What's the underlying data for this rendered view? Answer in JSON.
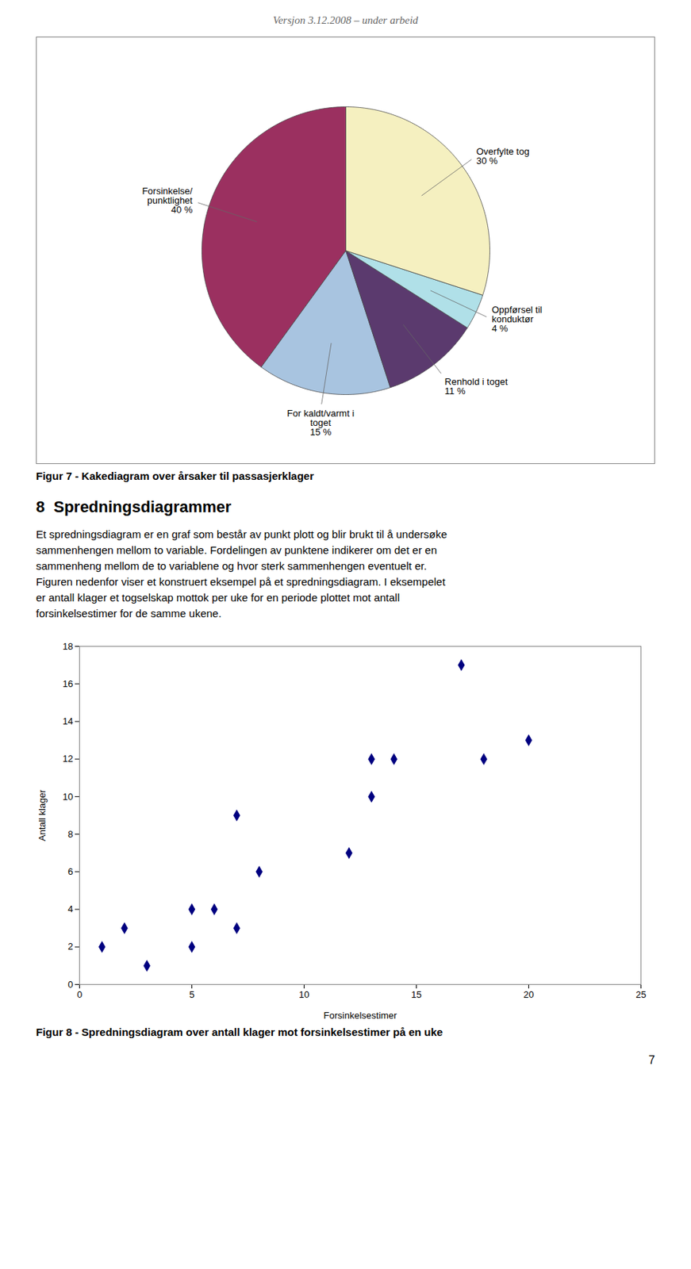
{
  "header": "Versjon 3.12.2008 – under arbeid",
  "section_title": "8  Spredningsdiagrammer",
  "body_text": [
    "Et spredningsdiagram er en graf som består av punkt plott og blir brukt til å undersøke",
    "sammenhengen mellom to variable. Fordelingen av punktene indikerer om det er en",
    "sammenheng mellom de to variablene og hvor sterk sammenhengen eventuelt er.",
    "Figuren nedenfor viser et konstruert eksempel på et spredningsdiagram. I eksempelet",
    "er antall klager et togselskap mottok per uke for en periode plottet mot antall",
    "forsinkelsestimer for de samme ukene."
  ],
  "page_number": "7",
  "chart_data": [
    {
      "type": "pie",
      "title": "Figur 7 - Kakediagram over årsaker til passasjerklager",
      "categories": [
        "Forsinkelse/\npunktlighet",
        "For kaldt/varmt i\ntoget",
        "Renhold i toget",
        "Oppførsel til\nkonduktør",
        "Overfylte tog"
      ],
      "values": [
        40,
        15,
        11,
        4,
        30
      ],
      "value_labels": [
        "40 %",
        "15 %",
        "11 %",
        "4 %",
        "30 %"
      ],
      "data_labels": true,
      "colors": [
        "#9B3060",
        "#A8C4E0",
        "#5B3A6E",
        "#B0E0E8",
        "#F5F0C0"
      ]
    },
    {
      "type": "scatter",
      "title": "Figur 8 - Spredningsdiagram over antall klager mot forsinkelsestimer på en uke",
      "x": [
        1,
        2,
        3,
        5,
        5,
        6,
        7,
        7,
        8,
        12,
        13,
        13,
        14,
        17,
        18,
        20
      ],
      "values": [
        2,
        3,
        1,
        2,
        4,
        4,
        3,
        9,
        6,
        7,
        10,
        12,
        12,
        17,
        12,
        13
      ],
      "color": "#000080",
      "marker": "diamond",
      "xlabel": "Forsinkelsestimer",
      "ylabel": "Antall klager",
      "xlim": [
        0,
        25
      ],
      "ylim": [
        0,
        18
      ],
      "xticks": [
        0,
        5,
        10,
        15,
        20,
        25
      ],
      "yticks": [
        0,
        2,
        4,
        6,
        8,
        10,
        12,
        14,
        16,
        18
      ],
      "grid": false
    }
  ]
}
